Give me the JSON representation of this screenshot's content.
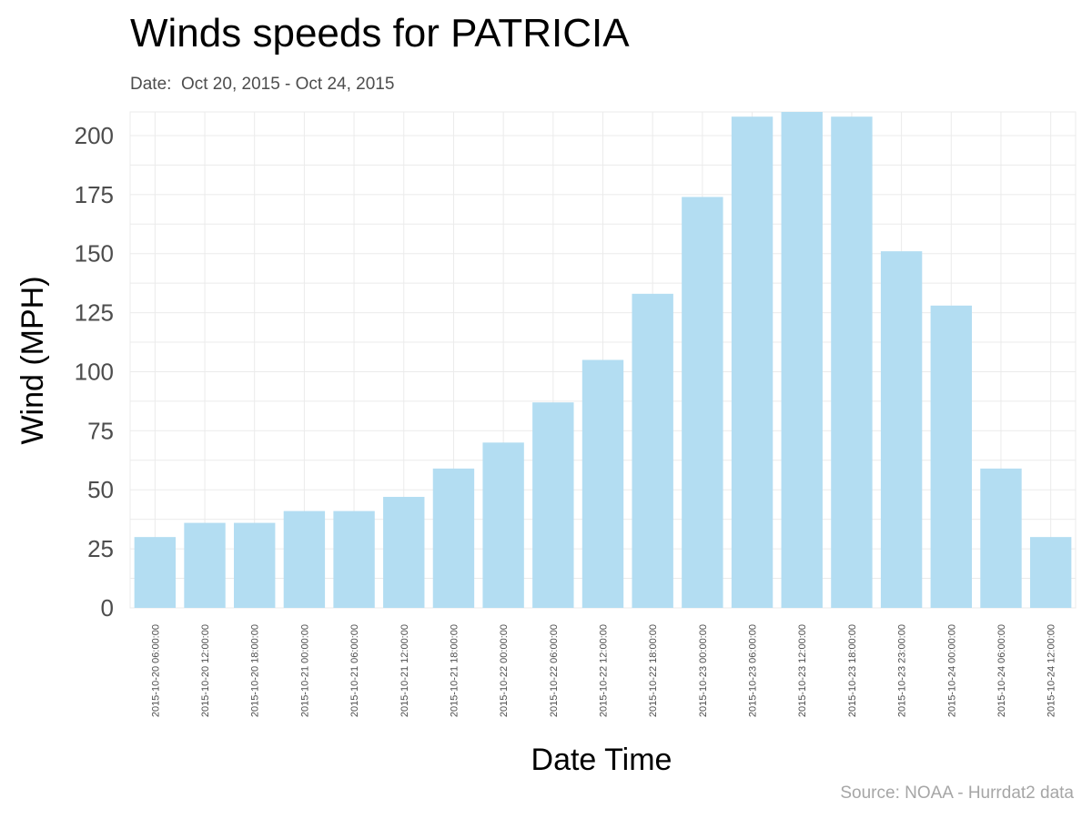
{
  "title": "Winds speeds for PATRICIA",
  "subtitle": "Date:  Oct 20, 2015 - Oct 24, 2015",
  "caption": "Source: NOAA - Hurrdat2 data",
  "colors": {
    "bar": "#b3ddf2",
    "grid": "#ebebeb",
    "tick_text": "#4d4d4d",
    "axis_title": "#000000"
  },
  "chart_data": {
    "type": "bar",
    "xlabel": "Date Time",
    "ylabel": "Wind (MPH)",
    "ylim": [
      0,
      210
    ],
    "yticks": [
      0,
      25,
      50,
      75,
      100,
      125,
      150,
      175,
      200
    ],
    "grid": true,
    "categories": [
      "2015-10-20 06:00:00",
      "2015-10-20 12:00:00",
      "2015-10-20 18:00:00",
      "2015-10-21 00:00:00",
      "2015-10-21 06:00:00",
      "2015-10-21 12:00:00",
      "2015-10-21 18:00:00",
      "2015-10-22 00:00:00",
      "2015-10-22 06:00:00",
      "2015-10-22 12:00:00",
      "2015-10-22 18:00:00",
      "2015-10-23 00:00:00",
      "2015-10-23 06:00:00",
      "2015-10-23 12:00:00",
      "2015-10-23 18:00:00",
      "2015-10-23 23:00:00",
      "2015-10-24 00:00:00",
      "2015-10-24 06:00:00",
      "2015-10-24 12:00:00"
    ],
    "values": [
      30,
      36,
      36,
      41,
      41,
      47,
      59,
      70,
      87,
      105,
      133,
      174,
      208,
      210,
      208,
      151,
      128,
      59,
      30
    ]
  }
}
